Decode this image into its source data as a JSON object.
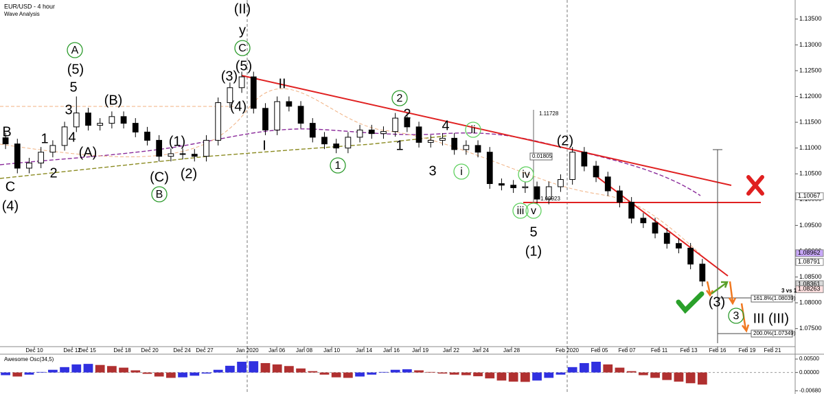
{
  "chart_data": {
    "type": "candlestick",
    "title": "EUR/USD - 4 hour",
    "subtitle": "Wave Analysis",
    "up_color": "#ffffff",
    "down_color": "#000000",
    "xlim": [
      -0.47,
      66.8
    ],
    "xticks": [
      {
        "value": 2.44,
        "label": "Dec 10"
      },
      {
        "value": 5.64,
        "label": "Dec 12"
      },
      {
        "value": 6.92,
        "label": "Dec 15"
      },
      {
        "value": 9.88,
        "label": "Dec 18"
      },
      {
        "value": 12.21,
        "label": "Dec 20"
      },
      {
        "value": 14.94,
        "label": "Dec 24"
      },
      {
        "value": 16.86,
        "label": "Dec 27"
      },
      {
        "value": 20.47,
        "label": "Jan 2020"
      },
      {
        "value": 22.97,
        "label": "Jan 06"
      },
      {
        "value": 25.29,
        "label": "Jan 08"
      },
      {
        "value": 27.62,
        "label": "Jan 10"
      },
      {
        "value": 30.35,
        "label": "Jan 14"
      },
      {
        "value": 32.67,
        "label": "Jan 16"
      },
      {
        "value": 35.12,
        "label": "Jan 19"
      },
      {
        "value": 37.73,
        "label": "Jan 22"
      },
      {
        "value": 40.23,
        "label": "Jan 24"
      },
      {
        "value": 42.85,
        "label": "Jan 28"
      },
      {
        "value": 47.56,
        "label": "Feb 2020"
      },
      {
        "value": 50.29,
        "label": "Feb 05"
      },
      {
        "value": 52.62,
        "label": "Feb 07"
      },
      {
        "value": 55.35,
        "label": "Feb 11"
      },
      {
        "value": 57.85,
        "label": "Feb 13"
      },
      {
        "value": 60.29,
        "label": "Feb 16"
      },
      {
        "value": 62.79,
        "label": "Feb 19"
      },
      {
        "value": 64.94,
        "label": "Feb 21"
      }
    ],
    "ylim": [
      1.0715,
      1.1387
    ],
    "yticks": [
      {
        "value": 1.135,
        "label": "1.13500"
      },
      {
        "value": 1.13,
        "label": "1.13000"
      },
      {
        "value": 1.125,
        "label": "1.12500"
      },
      {
        "value": 1.12,
        "label": "1.12000"
      },
      {
        "value": 1.115,
        "label": "1.11500"
      },
      {
        "value": 1.11,
        "label": "1.11000"
      },
      {
        "value": 1.105,
        "label": "1.10500"
      },
      {
        "value": 1.1,
        "label": "1.10000"
      },
      {
        "value": 1.095,
        "label": "1.09500"
      },
      {
        "value": 1.09,
        "label": "1.09000"
      },
      {
        "value": 1.085,
        "label": "1.08500"
      },
      {
        "value": 1.08,
        "label": "1.08000"
      },
      {
        "value": 1.075,
        "label": "1.07500"
      }
    ],
    "open": [
      1.112,
      1.1108,
      1.1061,
      1.1071,
      1.1092,
      1.1105,
      1.1141,
      1.1168,
      1.1144,
      1.1148,
      1.1161,
      1.1148,
      1.1131,
      1.1115,
      1.1084,
      1.1089,
      1.1088,
      1.1084,
      1.1115,
      1.1188,
      1.1217,
      1.1238,
      1.1177,
      1.1135,
      1.119,
      1.1181,
      1.1148,
      1.1121,
      1.1108,
      1.11,
      1.1121,
      1.1135,
      1.1128,
      1.1132,
      1.1158,
      1.1141,
      1.1111,
      1.1115,
      1.1119,
      1.1097,
      1.1105,
      1.1092,
      1.1031,
      1.1028,
      1.1023,
      1.1025,
      1.1001,
      1.1025,
      1.1039,
      1.1092,
      1.1065,
      1.1044,
      1.1017,
      1.0995,
      1.0964,
      1.0955,
      1.0935,
      1.0915,
      1.0906,
      1.0875
    ],
    "high": [
      1.113,
      1.1118,
      1.1081,
      1.1102,
      1.1115,
      1.1151,
      1.12,
      1.1178,
      1.1158,
      1.1171,
      1.1171,
      1.1158,
      1.1141,
      1.1125,
      1.1099,
      1.1099,
      1.1098,
      1.1125,
      1.1198,
      1.1227,
      1.1248,
      1.1248,
      1.1187,
      1.12,
      1.12,
      1.1191,
      1.1158,
      1.1131,
      1.1118,
      1.1131,
      1.1145,
      1.1145,
      1.1142,
      1.1168,
      1.1168,
      1.1151,
      1.1125,
      1.1129,
      1.1129,
      1.1115,
      1.1115,
      1.1102,
      1.1041,
      1.1038,
      1.1035,
      1.1035,
      1.1035,
      1.1049,
      1.1102,
      1.1102,
      1.1075,
      1.1054,
      1.1027,
      1.1005,
      1.0974,
      1.0965,
      1.0945,
      1.0925,
      1.0916,
      1.0885
    ],
    "low": [
      1.1098,
      1.1051,
      1.1051,
      1.1061,
      1.1082,
      1.1095,
      1.1131,
      1.1134,
      1.1134,
      1.1138,
      1.1138,
      1.1121,
      1.1105,
      1.1074,
      1.1074,
      1.1078,
      1.1074,
      1.1074,
      1.1105,
      1.1178,
      1.1207,
      1.1167,
      1.1125,
      1.1125,
      1.1171,
      1.1138,
      1.1111,
      1.1098,
      1.109,
      1.109,
      1.1111,
      1.1118,
      1.1118,
      1.1122,
      1.1131,
      1.1101,
      1.1101,
      1.1105,
      1.1087,
      1.1087,
      1.1082,
      1.1021,
      1.1018,
      1.1013,
      1.1013,
      1.0991,
      1.0991,
      1.1015,
      1.1029,
      1.1055,
      1.1034,
      1.1007,
      1.0985,
      1.0954,
      1.0945,
      1.0925,
      1.0905,
      1.0896,
      1.0865,
      1.0832
    ],
    "close": [
      1.1108,
      1.1061,
      1.1071,
      1.1092,
      1.1105,
      1.1141,
      1.1168,
      1.1144,
      1.1148,
      1.1161,
      1.1148,
      1.1131,
      1.1115,
      1.1084,
      1.1089,
      1.1088,
      1.1084,
      1.1115,
      1.1188,
      1.1217,
      1.1238,
      1.1177,
      1.1135,
      1.119,
      1.1181,
      1.1148,
      1.1121,
      1.1108,
      1.11,
      1.1121,
      1.1135,
      1.1128,
      1.1132,
      1.1158,
      1.1141,
      1.1111,
      1.1115,
      1.1119,
      1.1097,
      1.1105,
      1.1092,
      1.1031,
      1.1028,
      1.1023,
      1.1025,
      1.1001,
      1.1025,
      1.1039,
      1.1092,
      1.1065,
      1.1044,
      1.1017,
      1.0995,
      1.0964,
      1.0955,
      1.0935,
      1.0915,
      1.0906,
      1.0875,
      1.0842
    ],
    "price_markers": [
      {
        "value": 1.10067,
        "label": "1.10067",
        "color": "#ffffff"
      },
      {
        "value": 1.08962,
        "label": "1.08962",
        "color": "#c8a8f8"
      },
      {
        "value": 1.08791,
        "label": "1.08791",
        "color": "#ffffff"
      },
      {
        "value": 1.08361,
        "label": "1.08361",
        "color": "#d8d8d8"
      },
      {
        "value": 1.08263,
        "label": "1.08263",
        "color": "#ffe0e0"
      }
    ],
    "annotations": [
      "1.11728",
      "0.01805",
      "1.09923",
      "161.8%(1.08039)",
      "200.0%(1.07349)",
      "3 vs 1"
    ],
    "wave_labels": [
      {
        "text": "B",
        "color": "#7a1010"
      },
      {
        "text": "C",
        "color": "#7a1010"
      },
      {
        "text": "(4)",
        "color": "#f07820"
      },
      {
        "text": "1",
        "color": "#7a1010"
      },
      {
        "text": "2",
        "color": "#7a1010"
      },
      {
        "text": "3",
        "color": "#7a1010"
      },
      {
        "text": "4",
        "color": "#7a1010"
      },
      {
        "text": "5",
        "color": "#7a1010"
      },
      {
        "text": "(5)",
        "color": "#f07820"
      },
      {
        "text": "A",
        "color": "#2a9a2a",
        "circled": true
      },
      {
        "text": "(A)",
        "color": "#f07820"
      },
      {
        "text": "(B)",
        "color": "#f07820"
      },
      {
        "text": "(C)",
        "color": "#f07820"
      },
      {
        "text": "B",
        "color": "#2a9a2a",
        "circled": true
      },
      {
        "text": "(1)",
        "color": "#f07820"
      },
      {
        "text": "(2)",
        "color": "#f07820"
      },
      {
        "text": "(3)",
        "color": "#f07820"
      },
      {
        "text": "(4)",
        "color": "#f07820"
      },
      {
        "text": "(5)",
        "color": "#f07820"
      },
      {
        "text": "C",
        "color": "#2a9a2a",
        "circled": true
      },
      {
        "text": "y",
        "color": "#1a30c0"
      },
      {
        "text": "(II)",
        "color": "#7a2a9a"
      },
      {
        "text": "II",
        "color": "#1a30c0"
      },
      {
        "text": "I",
        "color": "#1a30c0"
      },
      {
        "text": "1",
        "color": "#2a9a2a",
        "circled": true
      },
      {
        "text": "2",
        "color": "#2a9a2a",
        "circled": true
      },
      {
        "text": "2",
        "color": "#7a1010"
      },
      {
        "text": "1",
        "color": "#7a1010"
      },
      {
        "text": "3",
        "color": "#7a1010"
      },
      {
        "text": "4",
        "color": "#7a1010"
      },
      {
        "text": "ii",
        "color": "#5ed05e",
        "circled": true
      },
      {
        "text": "i",
        "color": "#5ed05e",
        "circled": true
      },
      {
        "text": "iv",
        "color": "#5ed05e",
        "circled": true
      },
      {
        "text": "iii",
        "color": "#5ed05e",
        "circled": true
      },
      {
        "text": "v",
        "color": "#5ed05e",
        "circled": true
      },
      {
        "text": "5",
        "color": "#7a1010"
      },
      {
        "text": "(1)",
        "color": "#f07820"
      },
      {
        "text": "(2)",
        "color": "#f07820"
      },
      {
        "text": "(3)",
        "color": "#f07820"
      },
      {
        "text": "3",
        "color": "#2a9a2a",
        "circled": true
      },
      {
        "text": "III",
        "color": "#1a30c0"
      },
      {
        "text": "(III)",
        "color": "#7a2a9a"
      }
    ],
    "oscillator": {
      "title": "Awesome Osc(34,5)",
      "up_color": "#3030e0",
      "down_color": "#b03030",
      "ylim": [
        -0.0075,
        0.0063
      ],
      "yticks": [
        {
          "value": 0.005,
          "label": "0.00500"
        },
        {
          "value": 0,
          "label": "0.00000"
        },
        {
          "value": -0.0068,
          "label": "-0.00680"
        }
      ],
      "values": [
        -0.001,
        -0.0015,
        -0.0008,
        0.0002,
        0.001,
        0.002,
        0.003,
        0.0032,
        0.0028,
        0.0024,
        0.0018,
        0.0008,
        -0.0005,
        -0.0015,
        -0.002,
        -0.0018,
        -0.0012,
        -0.0004,
        0.001,
        0.0025,
        0.004,
        0.0042,
        0.0035,
        0.003,
        0.0024,
        0.0015,
        0.0005,
        -0.0008,
        -0.0018,
        -0.002,
        -0.0015,
        -0.0008,
        0.0002,
        0.001,
        0.0012,
        0.0008,
        0.0002,
        -0.0004,
        -0.0008,
        -0.001,
        -0.0014,
        -0.0022,
        -0.003,
        -0.0034,
        -0.0035,
        -0.003,
        -0.002,
        -0.0008,
        0.002,
        0.0035,
        0.004,
        0.003,
        0.0018,
        0.0005,
        -0.001,
        -0.002,
        -0.0028,
        -0.0034,
        -0.004,
        -0.0045
      ]
    }
  }
}
